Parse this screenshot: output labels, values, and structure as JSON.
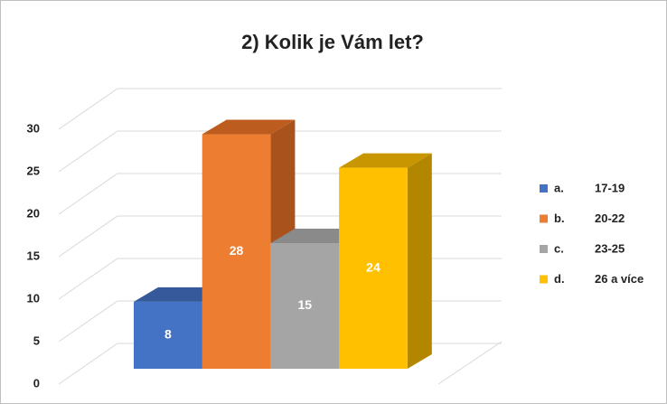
{
  "chart_data": {
    "type": "bar3d",
    "title": "2) Kolik je Vám let?",
    "legend_prefixes": [
      "a.",
      "b.",
      "c.",
      "d."
    ],
    "categories": [
      "17-19",
      "20-22",
      "23-25",
      "26 a více"
    ],
    "values": [
      8,
      28,
      15,
      24
    ],
    "colors": [
      "#4472c4",
      "#ed7d31",
      "#a5a5a5",
      "#ffc000"
    ],
    "side_colors": [
      "#2f5597",
      "#a9521b",
      "#7b7b7b",
      "#b38600"
    ],
    "top_colors": [
      "#36599b",
      "#bd5c1f",
      "#8a8a8a",
      "#c79600"
    ],
    "ylim": [
      0,
      30
    ],
    "yticks": [
      0,
      5,
      10,
      15,
      20,
      25,
      30
    ],
    "grid": true,
    "legend": "right"
  }
}
